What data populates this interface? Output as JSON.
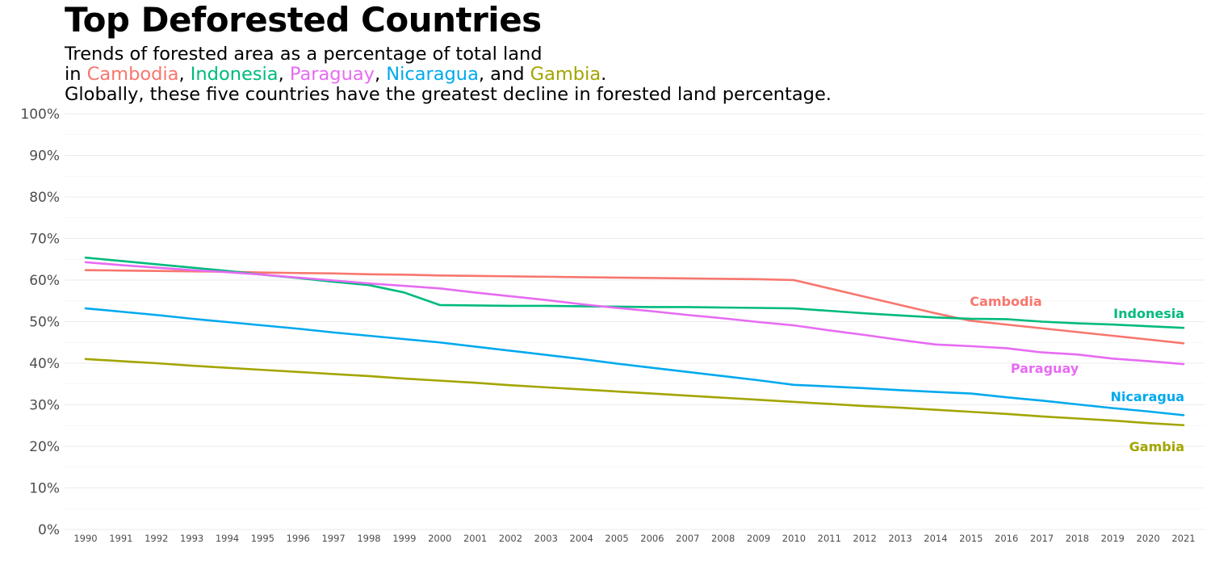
{
  "header": {
    "title": "Top Deforested Countries",
    "subtitle_line1": "Trends of forested area as a percentage of total land",
    "subtitle_line2": {
      "prefix": "in ",
      "sep1": ", ",
      "sep2": ", ",
      "sep3": ", ",
      "sep4": ", and ",
      "suffix": "."
    },
    "subtitle_line3": "Globally, these five countries have the greatest decline in forested land percentage."
  },
  "chart_data": {
    "type": "line",
    "x": [
      1990,
      1991,
      1992,
      1993,
      1994,
      1995,
      1996,
      1997,
      1998,
      1999,
      2000,
      2001,
      2002,
      2003,
      2004,
      2005,
      2006,
      2007,
      2008,
      2009,
      2010,
      2011,
      2012,
      2013,
      2014,
      2015,
      2016,
      2017,
      2018,
      2019,
      2020,
      2021
    ],
    "ylim": [
      0,
      100
    ],
    "yticks": [
      "0%",
      "10%",
      "20%",
      "30%",
      "40%",
      "50%",
      "60%",
      "70%",
      "80%",
      "90%",
      "100%"
    ],
    "grid": true,
    "legend": "direct labels at line ends",
    "series": [
      {
        "name": "Cambodia",
        "color": "#F8766D",
        "values": [
          62.4,
          62.3,
          62.2,
          62.1,
          62.0,
          61.8,
          61.7,
          61.6,
          61.4,
          61.3,
          61.1,
          61.0,
          60.9,
          60.8,
          60.7,
          60.6,
          60.5,
          60.4,
          60.3,
          60.2,
          60.0,
          58.0,
          56.0,
          54.0,
          52.0,
          50.2,
          49.3,
          48.4,
          47.5,
          46.6,
          45.7,
          44.8
        ]
      },
      {
        "name": "Indonesia",
        "color": "#00BA7D",
        "values": [
          65.4,
          64.6,
          63.8,
          63.0,
          62.2,
          61.3,
          60.5,
          59.6,
          58.8,
          57.0,
          54.0,
          53.9,
          53.8,
          53.8,
          53.7,
          53.6,
          53.5,
          53.5,
          53.4,
          53.3,
          53.2,
          52.6,
          52.0,
          51.5,
          51.0,
          50.7,
          50.6,
          50.0,
          49.6,
          49.3,
          48.9,
          48.5
        ]
      },
      {
        "name": "Paraguay",
        "color": "#E76BF3",
        "values": [
          64.3,
          63.6,
          63.0,
          62.4,
          61.9,
          61.3,
          60.6,
          59.9,
          59.2,
          58.6,
          58.0,
          57.0,
          56.1,
          55.2,
          54.2,
          53.3,
          52.5,
          51.6,
          50.8,
          49.9,
          49.1,
          47.9,
          46.8,
          45.6,
          44.5,
          44.1,
          43.6,
          42.6,
          42.1,
          41.1,
          40.5,
          39.8
        ]
      },
      {
        "name": "Nicaragua",
        "color": "#00A9EE",
        "values": [
          53.2,
          52.4,
          51.6,
          50.7,
          49.9,
          49.1,
          48.3,
          47.4,
          46.6,
          45.8,
          45.0,
          44.0,
          43.0,
          42.0,
          41.0,
          39.9,
          38.9,
          37.9,
          36.9,
          35.9,
          34.8,
          34.4,
          34.0,
          33.5,
          33.1,
          32.7,
          31.8,
          31.0,
          30.1,
          29.2,
          28.4,
          27.5
        ]
      },
      {
        "name": "Gambia",
        "color": "#A3A500",
        "values": [
          41.0,
          40.5,
          40.0,
          39.4,
          38.9,
          38.4,
          37.9,
          37.4,
          36.9,
          36.3,
          35.8,
          35.3,
          34.7,
          34.2,
          33.7,
          33.2,
          32.7,
          32.2,
          31.7,
          31.2,
          30.7,
          30.2,
          29.7,
          29.3,
          28.8,
          28.3,
          27.8,
          27.2,
          26.7,
          26.2,
          25.6,
          25.1
        ]
      }
    ]
  }
}
